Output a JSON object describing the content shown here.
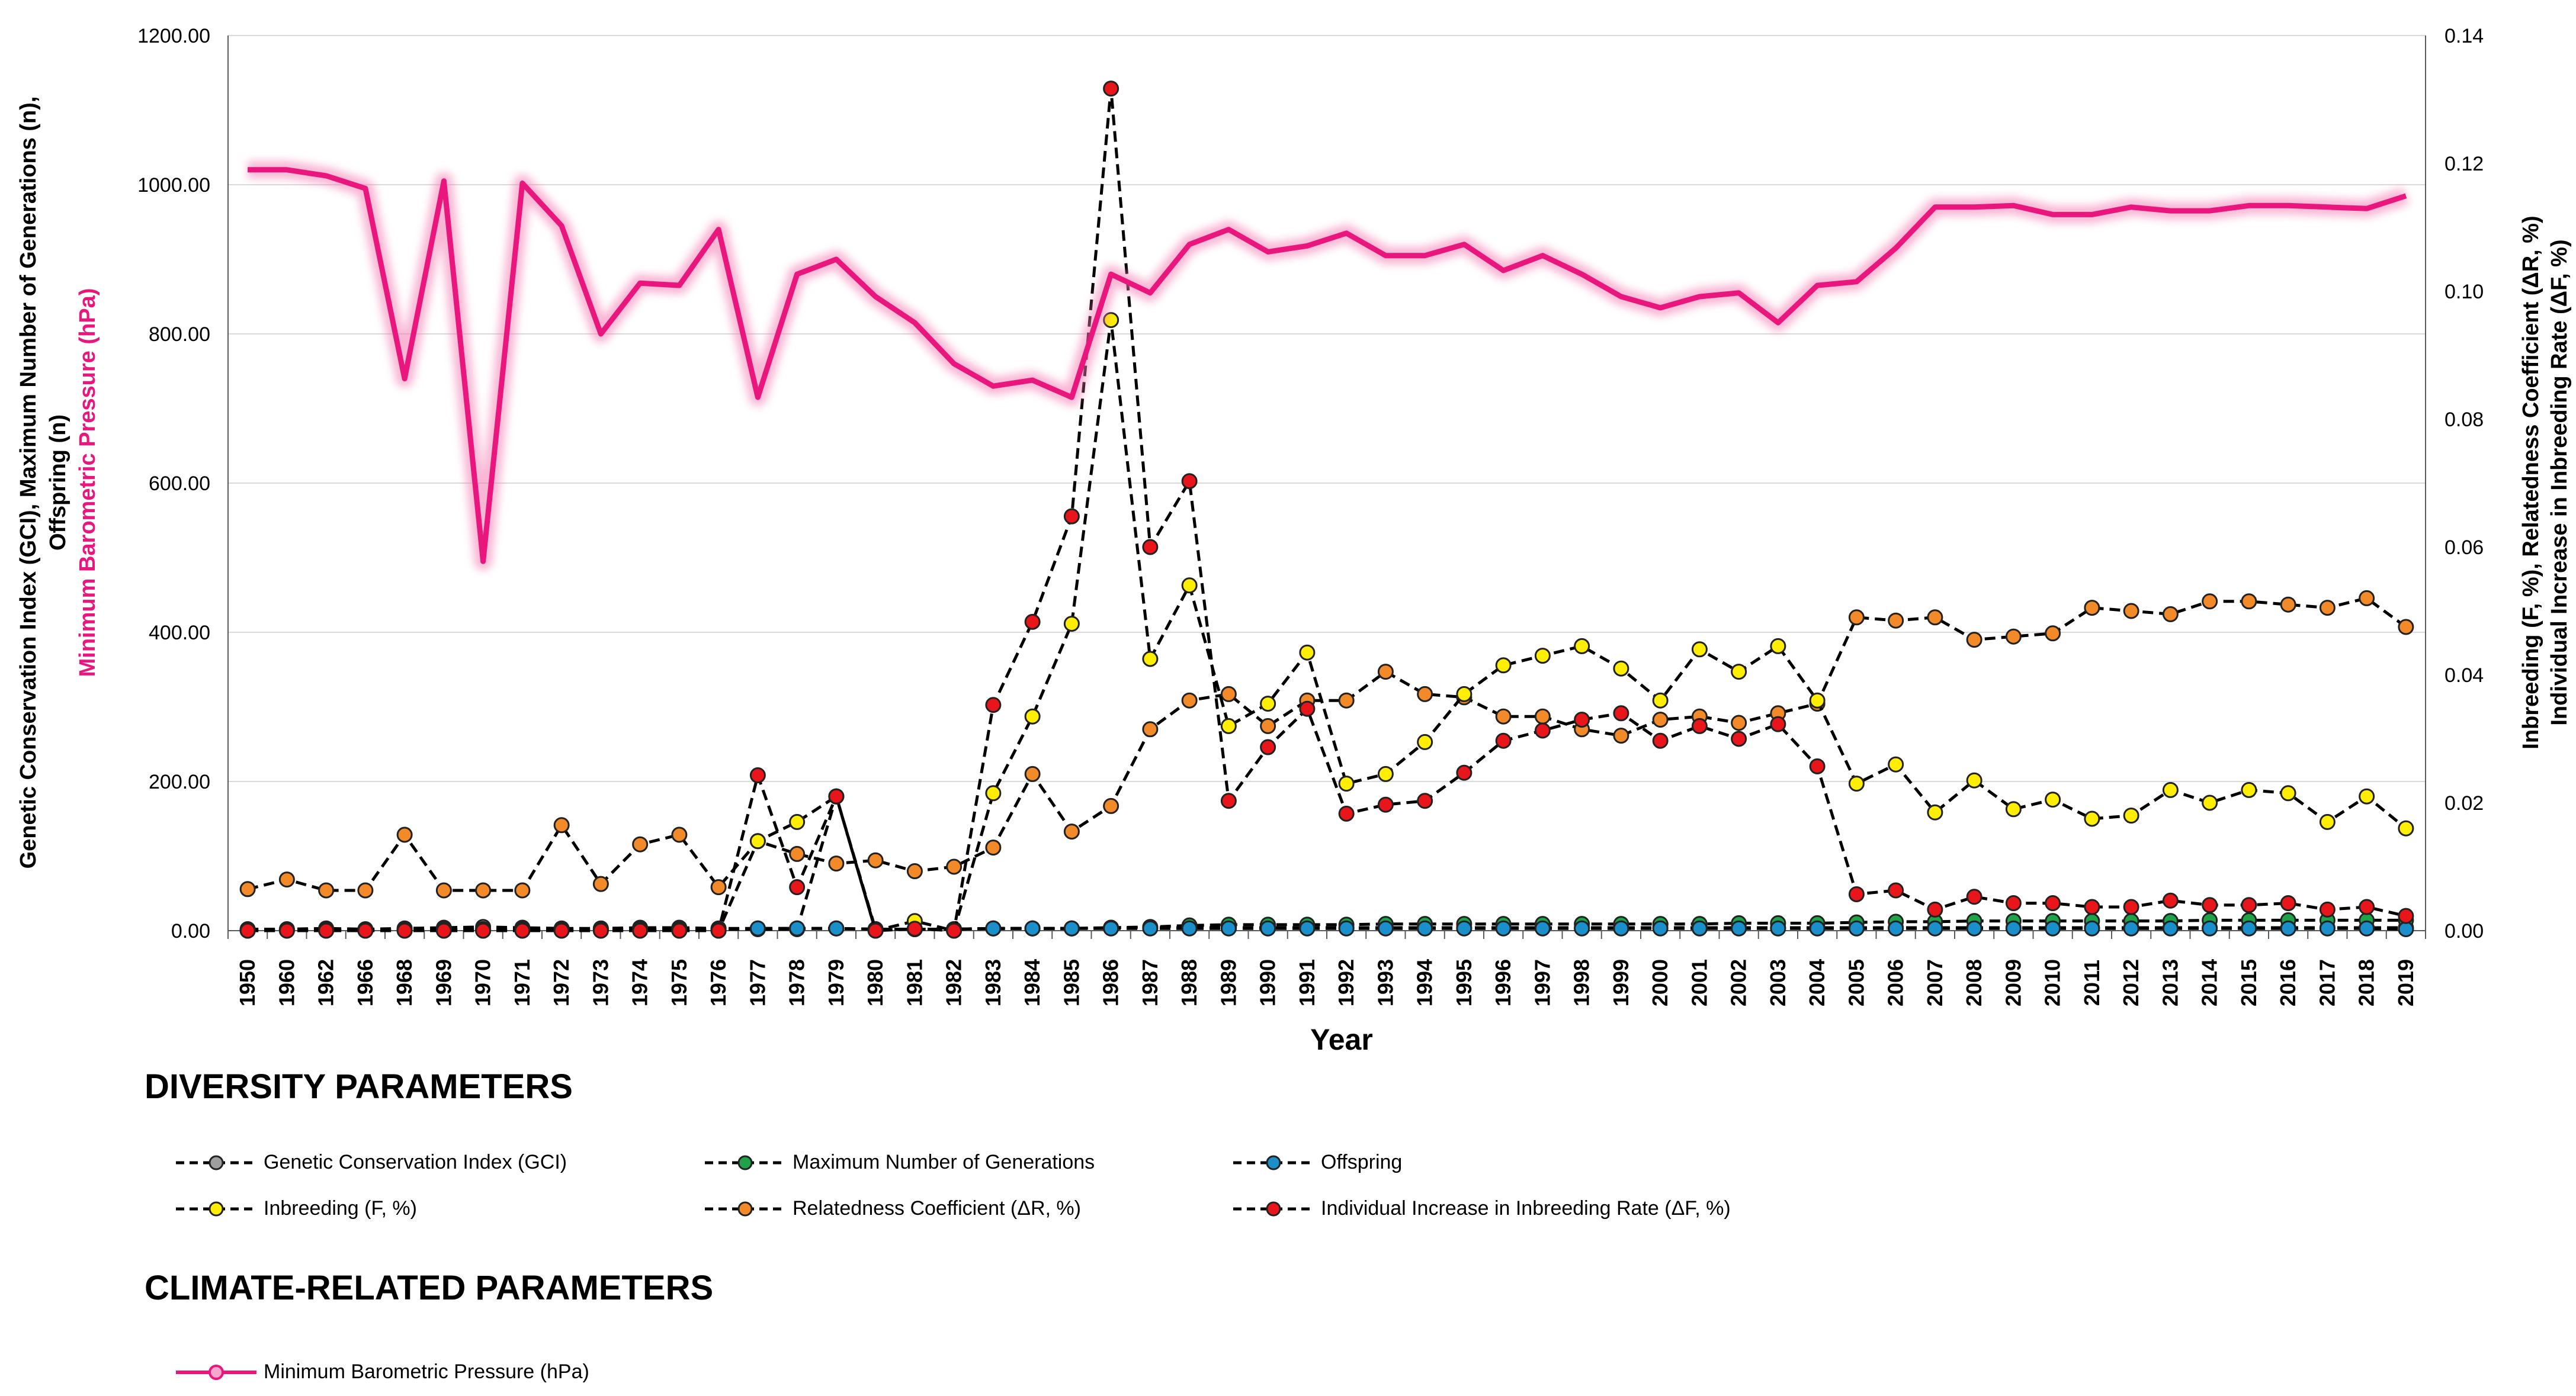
{
  "chart_data": {
    "type": "line",
    "left_axis_label_lines": [
      "Genetic Conservation Index (GCI), Maximum Number of Generations (n),",
      "Offspring (n)",
      "Minimum Barometric Pressure (hPa)"
    ],
    "right_axis_label_lines": [
      "Inbreeding (F, %), Relatedness Coefficient (ΔR, %)",
      "Individual Increase in Inbreeding Rate (ΔF, %)"
    ],
    "xlabel": "Year",
    "y_left": {
      "min": 0,
      "max": 1200,
      "ticks": [
        "0.00",
        "200.00",
        "400.00",
        "600.00",
        "800.00",
        "1000.00",
        "1200.00"
      ]
    },
    "y_right": {
      "min": 0,
      "max": 0.14,
      "ticks": [
        "0.00",
        "0.02",
        "0.04",
        "0.06",
        "0.08",
        "0.10",
        "0.12",
        "0.14"
      ]
    },
    "categories": [
      "1950",
      "1960",
      "1962",
      "1966",
      "1968",
      "1969",
      "1970",
      "1971",
      "1972",
      "1973",
      "1974",
      "1975",
      "1976",
      "1977",
      "1978",
      "1979",
      "1980",
      "1981",
      "1982",
      "1983",
      "1984",
      "1985",
      "1986",
      "1987",
      "1988",
      "1989",
      "1990",
      "1991",
      "1992",
      "1993",
      "1994",
      "1995",
      "1996",
      "1997",
      "1998",
      "1999",
      "2000",
      "2001",
      "2002",
      "2003",
      "2004",
      "2005",
      "2006",
      "2007",
      "2008",
      "2009",
      "2010",
      "2011",
      "2012",
      "2013",
      "2014",
      "2015",
      "2016",
      "2017",
      "2018",
      "2019"
    ],
    "series": [
      {
        "key": "pressure",
        "axis": "left",
        "color": "#e8167d",
        "marker": false,
        "values": [
          1020,
          1020,
          1012,
          995,
          740,
          1005,
          495,
          1002,
          945,
          800,
          868,
          865,
          940,
          715,
          880,
          900,
          850,
          815,
          760,
          730,
          738,
          715,
          880,
          855,
          920,
          940,
          910,
          918,
          935,
          905,
          905,
          920,
          885,
          905,
          880,
          850,
          835,
          850,
          855,
          815,
          865,
          870,
          915,
          970,
          970,
          972,
          960,
          960,
          970,
          965,
          965,
          972,
          972,
          970,
          968,
          985
        ]
      },
      {
        "key": "gci",
        "axis": "left",
        "color": "#9e9e9e",
        "marker": true,
        "values": [
          2,
          2,
          3,
          2,
          3,
          4,
          5,
          4,
          3,
          3,
          4,
          4,
          3,
          3,
          3,
          3,
          2,
          2,
          2,
          3,
          3,
          3,
          4,
          4,
          4,
          4,
          4,
          4,
          4,
          4,
          4,
          4,
          4,
          4,
          4,
          4,
          4,
          4,
          4,
          4,
          4,
          4,
          4,
          4,
          4,
          4,
          4,
          4,
          4,
          4,
          4,
          4,
          4,
          4,
          4,
          4
        ]
      },
      {
        "key": "generations",
        "axis": "left",
        "color": "#1fa24a",
        "marker": true,
        "values": [
          1,
          1,
          1,
          1,
          1,
          2,
          2,
          2,
          2,
          2,
          2,
          2,
          2,
          2,
          2,
          180,
          2,
          2,
          2,
          3,
          3,
          3,
          4,
          5,
          7,
          8,
          8,
          8,
          8,
          9,
          9,
          9,
          9,
          9,
          9,
          9,
          9,
          9,
          10,
          10,
          10,
          11,
          12,
          12,
          13,
          13,
          13,
          13,
          13,
          13,
          14,
          14,
          14,
          14,
          14,
          14
        ]
      },
      {
        "key": "offspring",
        "axis": "left",
        "color": "#1b8fc9",
        "marker": true,
        "values": [
          1,
          1,
          1,
          1,
          1,
          2,
          2,
          2,
          2,
          2,
          2,
          2,
          2,
          3,
          3,
          3,
          2,
          2,
          2,
          3,
          3,
          3,
          3,
          3,
          3,
          3,
          3,
          3,
          3,
          3,
          3,
          3,
          3,
          3,
          3,
          3,
          3,
          3,
          3,
          3,
          3,
          3,
          3,
          3,
          3,
          3,
          3,
          3,
          3,
          3,
          3,
          3,
          3,
          3,
          3,
          2
        ]
      },
      {
        "key": "inbreeding",
        "axis": "right",
        "color": "#ffee00",
        "marker": true,
        "values": [
          0,
          0,
          0,
          0,
          0,
          0,
          0,
          0,
          0,
          0,
          0,
          0,
          0,
          0.014,
          0.017,
          0.021,
          0,
          0.0015,
          0,
          0.0215,
          0.0335,
          0.048,
          0.0955,
          0.0425,
          0.054,
          0.032,
          0.0355,
          0.0435,
          0.023,
          0.0245,
          0.0295,
          0.037,
          0.0415,
          0.043,
          0.0445,
          0.041,
          0.036,
          0.044,
          0.0405,
          0.0445,
          0.036,
          0.023,
          0.026,
          0.0185,
          0.0235,
          0.019,
          0.0205,
          0.0175,
          0.018,
          0.022,
          0.02,
          0.022,
          0.0215,
          0.017,
          0.021,
          0.016
        ]
      },
      {
        "key": "relatedness",
        "axis": "right",
        "color": "#f28a2a",
        "marker": true,
        "values": [
          0.0065,
          0.008,
          0.0063,
          0.0063,
          0.015,
          0.0063,
          0.0063,
          0.0063,
          0.0165,
          0.0073,
          0.0135,
          0.015,
          0.0068,
          0.014,
          0.012,
          0.0105,
          0.011,
          0.0093,
          0.01,
          0.013,
          0.0245,
          0.0155,
          0.0195,
          0.0315,
          0.036,
          0.037,
          0.032,
          0.036,
          0.036,
          0.0405,
          0.037,
          0.0365,
          0.0335,
          0.0335,
          0.0315,
          0.0305,
          0.033,
          0.0335,
          0.0325,
          0.034,
          0.0355,
          0.049,
          0.0485,
          0.049,
          0.0455,
          0.046,
          0.0465,
          0.0505,
          0.05,
          0.0495,
          0.0515,
          0.0515,
          0.051,
          0.0505,
          0.052,
          0.0475
        ]
      },
      {
        "key": "increase",
        "axis": "right",
        "color": "#e8161b",
        "marker": true,
        "values": [
          0,
          0,
          0,
          0,
          0,
          0,
          0,
          0,
          0,
          0,
          0,
          0,
          0,
          0.0243,
          0.0068,
          0.021,
          0,
          0.0003,
          0,
          0.0353,
          0.0483,
          0.0648,
          0.1317,
          0.06,
          0.0703,
          0.0203,
          0.0287,
          0.0347,
          0.0183,
          0.0197,
          0.0203,
          0.0247,
          0.0297,
          0.0313,
          0.033,
          0.034,
          0.0297,
          0.032,
          0.03,
          0.0323,
          0.0257,
          0.0057,
          0.0063,
          0.0033,
          0.0053,
          0.0043,
          0.0043,
          0.0037,
          0.0037,
          0.0047,
          0.004,
          0.004,
          0.0043,
          0.0033,
          0.0037,
          0.0023
        ]
      }
    ]
  },
  "legend": {
    "diversity_heading": "DIVERSITY PARAMETERS",
    "climate_heading": "CLIMATE-RELATED PARAMETERS",
    "items": {
      "gci": "Genetic Conservation Index (GCI)",
      "generations": "Maximum Number of Generations",
      "offspring": "Offspring",
      "inbreeding": "Inbreeding (F, %)",
      "relatedness": "Relatedness Coefficient (ΔR, %)",
      "increase": "Individual Increase in Inbreeding Rate (ΔF, %)",
      "pressure": "Minimum Barometric Pressure (hPa)"
    }
  }
}
